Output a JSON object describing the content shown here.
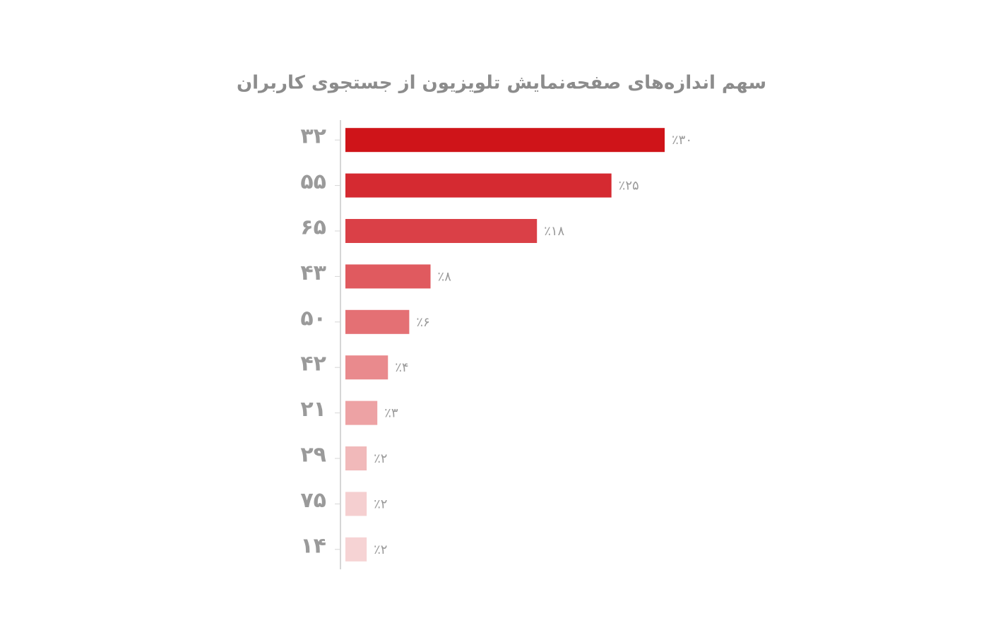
{
  "chart_data": {
    "type": "bar",
    "orientation": "horizontal",
    "title": "سهم اندازه‌های صفحه‌نمایش تلویزیون از جستجوی کاربران",
    "categories": [
      "۳۲",
      "۵۵",
      "۶۵",
      "۴۳",
      "۵۰",
      "۴۲",
      "۲۱",
      "۲۹",
      "۷۵",
      "۱۴"
    ],
    "values": [
      30,
      25,
      18,
      8,
      6,
      4,
      3,
      2,
      2,
      2
    ],
    "value_labels": [
      "٪۳۰",
      "٪۲۵",
      "٪۱۸",
      "٪۸",
      "٪۶",
      "٪۴",
      "٪۳",
      "٪۲",
      "٪۲",
      "٪۲"
    ],
    "colors": [
      "#cf1419",
      "#d52a31",
      "#da4047",
      "#e05a5f",
      "#e47074",
      "#e98a8d",
      "#eda2a4",
      "#f1b9ba",
      "#f5cfd0",
      "#f6d3d4"
    ],
    "xlim": [
      0,
      30
    ]
  }
}
